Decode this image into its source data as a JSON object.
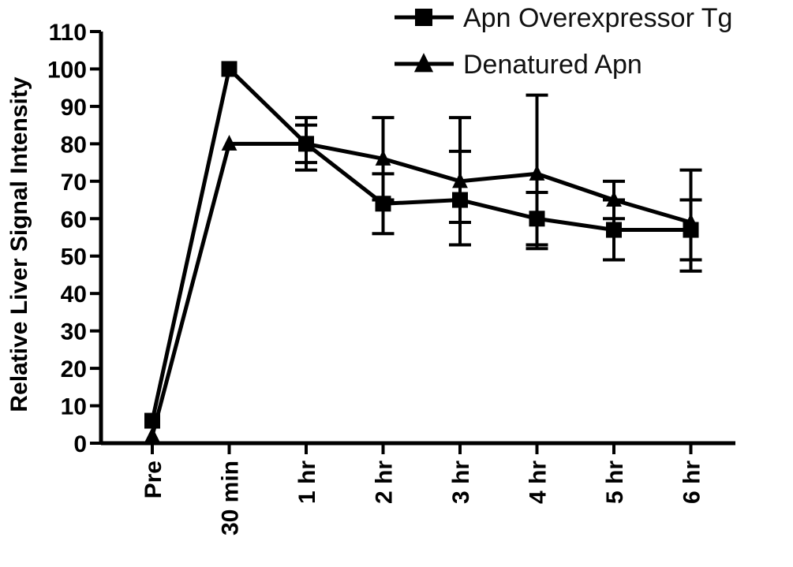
{
  "chart_data": {
    "type": "line",
    "ylabel": "Relative Liver Signal Intensity",
    "xlabel": "",
    "categories": [
      "Pre",
      "30 min",
      "1 hr",
      "2 hr",
      "3 hr",
      "4 hr",
      "5 hr",
      "6 hr"
    ],
    "ylim": [
      0,
      110
    ],
    "yticks": [
      0,
      10,
      20,
      30,
      40,
      50,
      60,
      70,
      80,
      90,
      100,
      110
    ],
    "grid": false,
    "legend_position": "top-right",
    "series": [
      {
        "name": "Apn Overexpressor Tg",
        "marker": "square",
        "values": [
          6,
          100,
          80,
          64,
          65,
          60,
          57,
          57
        ],
        "error_low": [
          null,
          null,
          73,
          56,
          53,
          53,
          49,
          46
        ],
        "error_high": [
          null,
          null,
          87,
          72,
          78,
          67,
          65,
          65
        ]
      },
      {
        "name": "Denatured Apn",
        "marker": "triangle",
        "values": [
          2,
          80,
          80,
          76,
          70,
          72,
          65,
          59
        ],
        "error_low": [
          null,
          null,
          75,
          65,
          59,
          52,
          60,
          49
        ],
        "error_high": [
          null,
          null,
          85,
          87,
          87,
          93,
          70,
          73
        ]
      }
    ]
  }
}
